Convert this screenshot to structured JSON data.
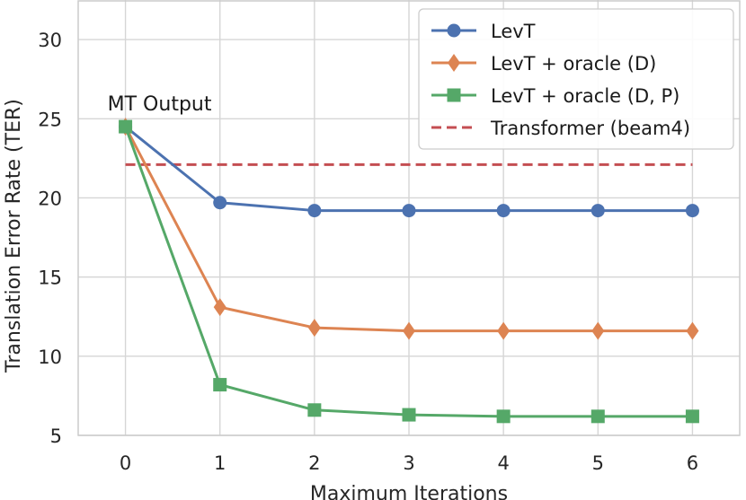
{
  "chart_data": {
    "type": "line",
    "title": "",
    "xlabel": "Maximum Iterations",
    "ylabel": "Translation Error Rate (TER)",
    "x": [
      0,
      1,
      2,
      3,
      4,
      5,
      6
    ],
    "xticks": [
      "0",
      "1",
      "2",
      "3",
      "4",
      "5",
      "6"
    ],
    "yticks": [
      "5",
      "10",
      "15",
      "20",
      "25",
      "30"
    ],
    "xlim": [
      -0.5,
      6.5
    ],
    "ylim": [
      5,
      32.5
    ],
    "grid": true,
    "legend_position": "top-right",
    "annotation": {
      "text": "MT Output",
      "x": 0,
      "y": 24.5
    },
    "series": [
      {
        "name": "LevT",
        "color": "#4c72b0",
        "marker": "circle",
        "style": "solid",
        "values": [
          24.5,
          19.7,
          19.2,
          19.2,
          19.2,
          19.2,
          19.2
        ]
      },
      {
        "name": "LevT + oracle (D)",
        "color": "#dd8452",
        "marker": "diamond",
        "style": "solid",
        "values": [
          24.5,
          13.1,
          11.8,
          11.6,
          11.6,
          11.6,
          11.6
        ]
      },
      {
        "name": "LevT + oracle (D, P)",
        "color": "#55a868",
        "marker": "square",
        "style": "solid",
        "values": [
          24.5,
          8.2,
          6.6,
          6.3,
          6.2,
          6.2,
          6.2
        ]
      },
      {
        "name": "Transformer (beam4)",
        "color": "#c44e52",
        "marker": "none",
        "style": "dashed",
        "values": [
          22.1,
          22.1,
          22.1,
          22.1,
          22.1,
          22.1,
          22.1
        ]
      }
    ]
  }
}
